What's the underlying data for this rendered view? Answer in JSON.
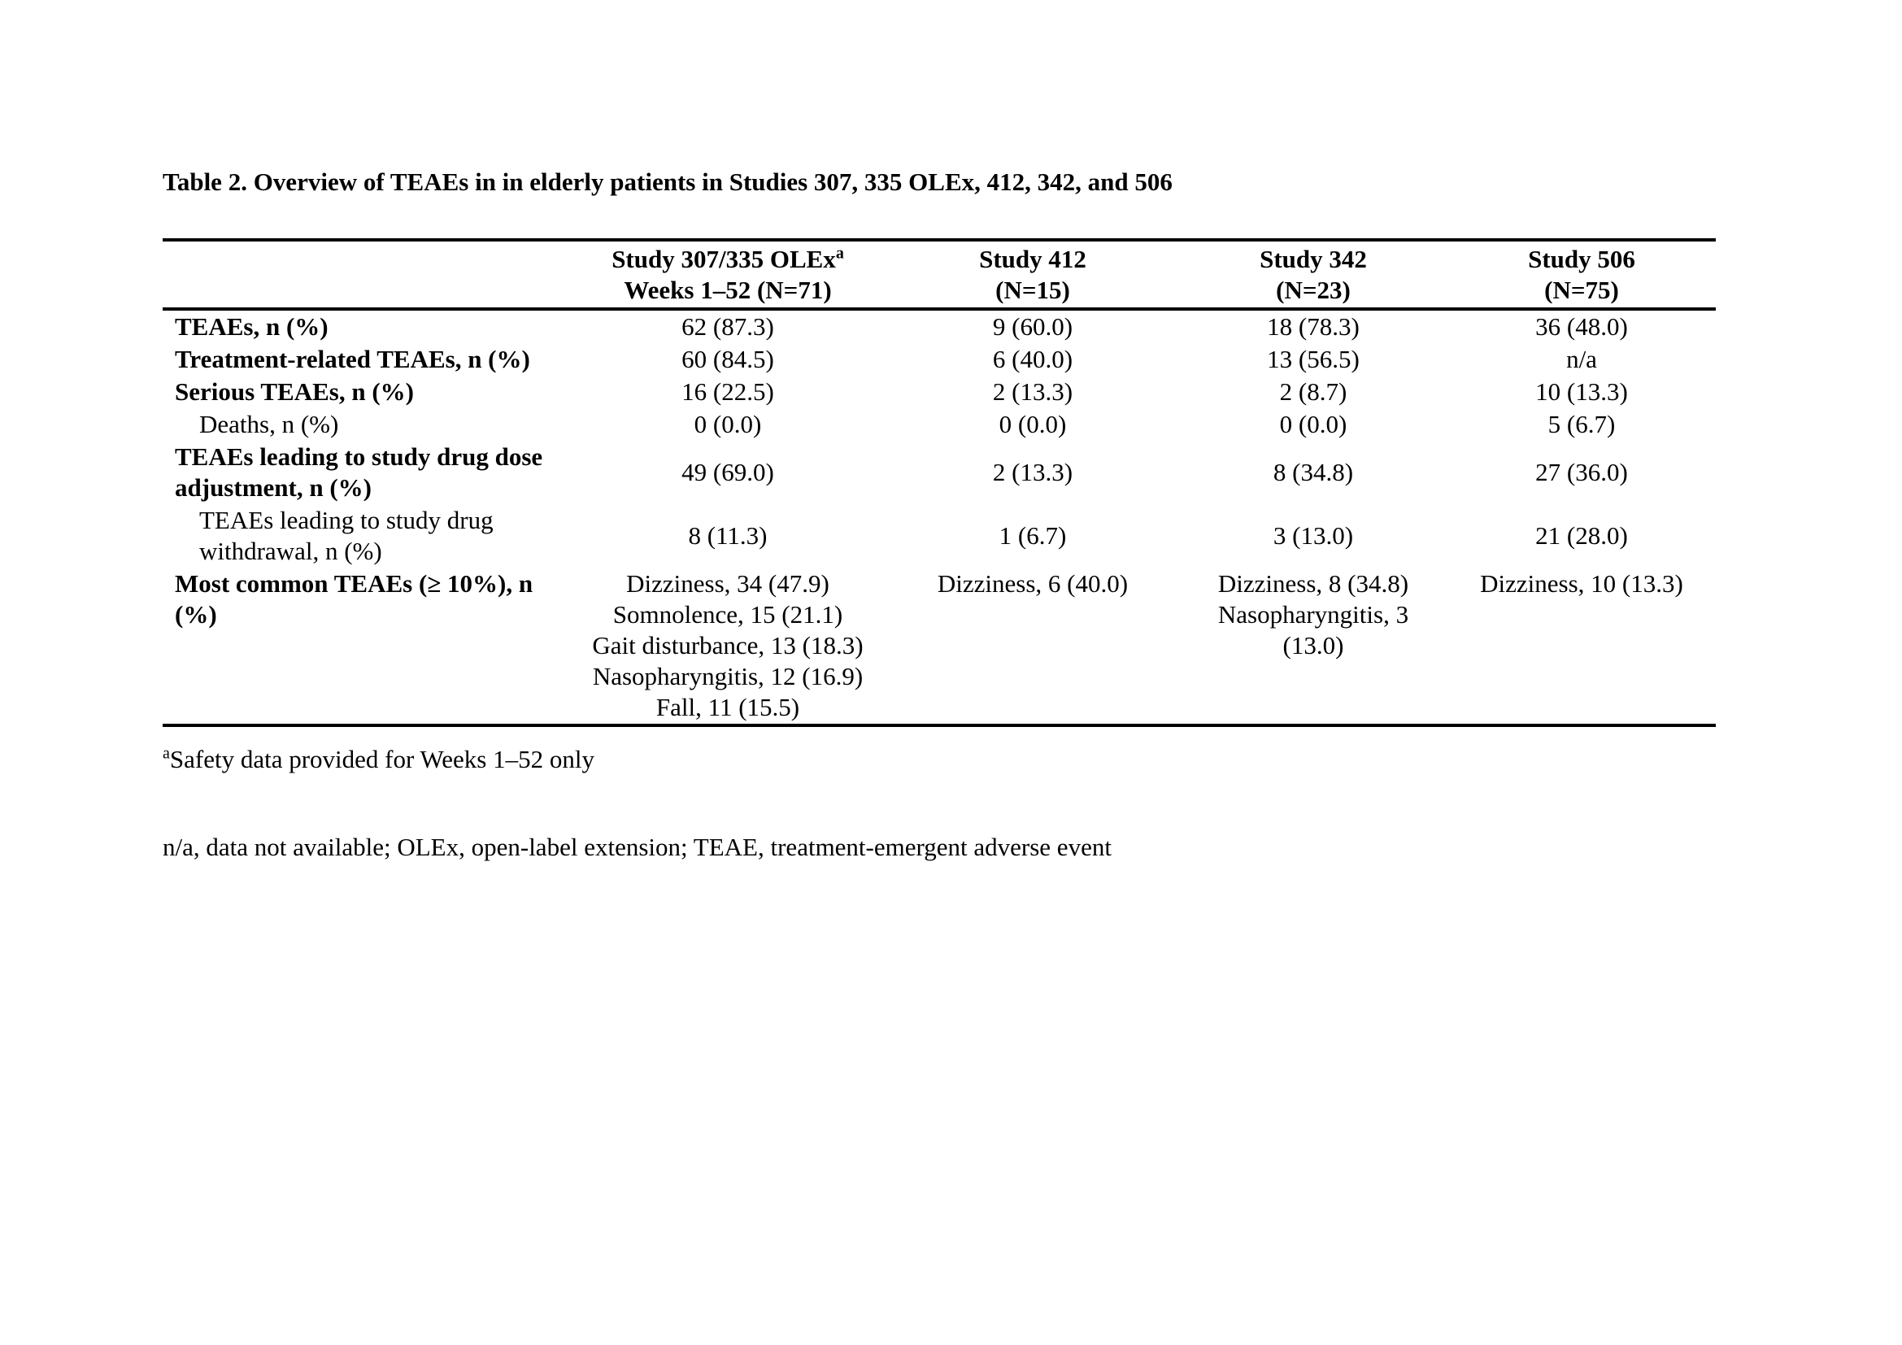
{
  "page": {
    "title": "Table 2. Overview of TEAEs in in elderly patients in Studies 307, 335 OLEx, 412, 342, and 506"
  },
  "table": {
    "headers": [
      {
        "line1": "Study 307/335 OLEx",
        "sup": "a",
        "line2": "Weeks 1–52 (N=71)"
      },
      {
        "line1": "Study 412",
        "line2": "(N=15)"
      },
      {
        "line1": "Study 342",
        "line2": "(N=23)"
      },
      {
        "line1": "Study 506",
        "line2": "(N=75)"
      }
    ],
    "rows": [
      {
        "label": "TEAEs, n (%)",
        "bold": true,
        "indent": false,
        "values": [
          "62 (87.3)",
          "9 (60.0)",
          "18 (78.3)",
          "36 (48.0)"
        ]
      },
      {
        "label": "Treatment-related TEAEs, n (%)",
        "bold": true,
        "indent": false,
        "values": [
          "60 (84.5)",
          "6 (40.0)",
          "13 (56.5)",
          "n/a"
        ]
      },
      {
        "label": "Serious TEAEs, n (%)",
        "bold": true,
        "indent": false,
        "values": [
          "16 (22.5)",
          "2 (13.3)",
          "2 (8.7)",
          "10 (13.3)"
        ]
      },
      {
        "label": "Deaths, n (%)",
        "bold": false,
        "indent": true,
        "values": [
          "0 (0.0)",
          "0 (0.0)",
          "0 (0.0)",
          "5 (6.7)"
        ]
      },
      {
        "label": "TEAEs leading to study drug dose adjustment, n (%)",
        "bold": true,
        "indent": false,
        "values": [
          "49 (69.0)",
          "2 (13.3)",
          "8 (34.8)",
          "27 (36.0)"
        ]
      },
      {
        "label": "TEAEs leading to study drug withdrawal, n (%)",
        "bold": false,
        "indent": true,
        "values": [
          "8 (11.3)",
          "1 (6.7)",
          "3 (13.0)",
          "21 (28.0)"
        ]
      },
      {
        "label": "Most common TEAEs (≥ 10%), n (%)",
        "bold": true,
        "indent": false,
        "top_align": true,
        "values": [
          [
            "Dizziness, 34 (47.9)",
            "Somnolence, 15 (21.1)",
            "Gait disturbance, 13 (18.3)",
            "Nasopharyngitis, 12 (16.9)",
            "Fall, 11 (15.5)"
          ],
          [
            "Dizziness, 6 (40.0)"
          ],
          [
            "Dizziness, 8 (34.8)",
            "Nasopharyngitis, 3 (13.0)"
          ],
          [
            "Dizziness, 10 (13.3)"
          ]
        ]
      }
    ]
  },
  "footnotes": [
    {
      "sup": "a",
      "text": "Safety data provided for Weeks 1–52 only"
    },
    {
      "text": "n/a, data not available; OLEx, open-label extension; TEAE, treatment-emergent adverse event"
    }
  ]
}
